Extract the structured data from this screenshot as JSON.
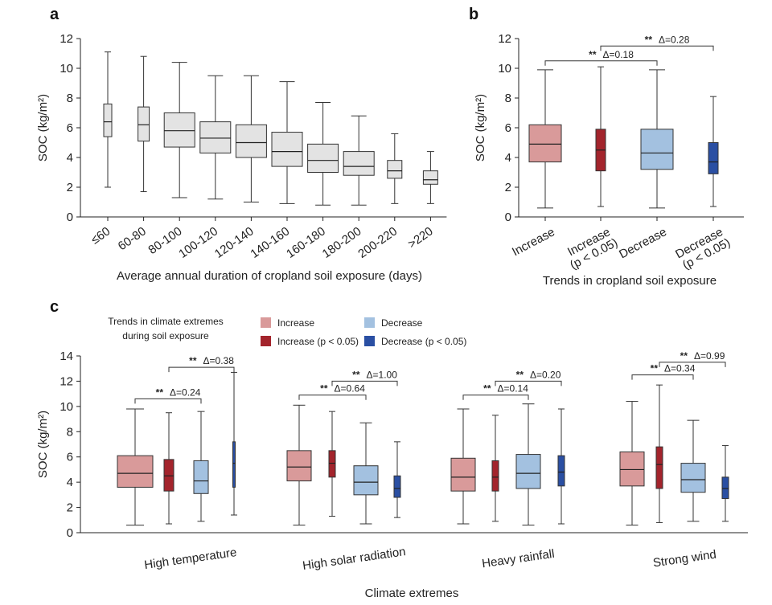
{
  "chart_data": [
    {
      "panel": "a",
      "type": "boxplot",
      "xlabel": "Average annual duration of cropland soil exposure (days)",
      "ylabel": "SOC (kg/m²)",
      "ylim": [
        0,
        12
      ],
      "yticks": [
        "0",
        "2",
        "4",
        "6",
        "8",
        "10",
        "12"
      ],
      "fill": "#e3e3e3",
      "categories": [
        "≤60",
        "60-80",
        "80-100",
        "100-120",
        "120-140",
        "140-160",
        "160-180",
        "180-200",
        "200-220",
        ">220"
      ],
      "boxes": [
        {
          "min": 2.0,
          "q1": 5.4,
          "median": 6.4,
          "q3": 7.6,
          "max": 11.1
        },
        {
          "min": 1.7,
          "q1": 5.1,
          "median": 6.2,
          "q3": 7.4,
          "max": 10.8
        },
        {
          "min": 1.3,
          "q1": 4.7,
          "median": 5.8,
          "q3": 7.0,
          "max": 10.4
        },
        {
          "min": 1.2,
          "q1": 4.3,
          "median": 5.3,
          "q3": 6.4,
          "max": 9.5
        },
        {
          "min": 1.0,
          "q1": 4.0,
          "median": 5.0,
          "q3": 6.2,
          "max": 9.5
        },
        {
          "min": 0.9,
          "q1": 3.4,
          "median": 4.4,
          "q3": 5.7,
          "max": 9.1
        },
        {
          "min": 0.8,
          "q1": 3.0,
          "median": 3.8,
          "q3": 4.9,
          "max": 7.7
        },
        {
          "min": 0.8,
          "q1": 2.8,
          "median": 3.4,
          "q3": 4.4,
          "max": 6.8
        },
        {
          "min": 0.9,
          "q1": 2.6,
          "median": 3.1,
          "q3": 3.8,
          "max": 5.6
        },
        {
          "min": 0.9,
          "q1": 2.2,
          "median": 2.5,
          "q3": 3.1,
          "max": 4.4
        }
      ]
    },
    {
      "panel": "b",
      "type": "boxplot",
      "xlabel": "Trends in cropland soil exposure",
      "ylabel": "SOC (kg/m²)",
      "ylim": [
        0,
        12
      ],
      "yticks": [
        "0",
        "2",
        "4",
        "6",
        "8",
        "10",
        "12"
      ],
      "categories": [
        {
          "line1": "Increase",
          "line2": ""
        },
        {
          "line1": "Increase",
          "line2": "(p < 0.05)"
        },
        {
          "line1": "Decrease",
          "line2": ""
        },
        {
          "line1": "Decrease",
          "line2": "(p < 0.05)"
        }
      ],
      "boxes": [
        {
          "min": 0.6,
          "q1": 3.7,
          "median": 4.9,
          "q3": 6.2,
          "max": 9.9,
          "color": "#d99a9a",
          "narrow": false
        },
        {
          "min": 0.7,
          "q1": 3.1,
          "median": 4.5,
          "q3": 5.9,
          "max": 10.1,
          "color": "#a3242c",
          "narrow": true
        },
        {
          "min": 0.6,
          "q1": 3.2,
          "median": 4.3,
          "q3": 5.9,
          "max": 9.9,
          "color": "#a3c1e0",
          "narrow": false
        },
        {
          "min": 0.7,
          "q1": 2.9,
          "median": 3.7,
          "q3": 5.0,
          "max": 8.1,
          "color": "#2a4fa3",
          "narrow": true
        }
      ],
      "significance": [
        {
          "from": 0,
          "to": 2,
          "stars": "**",
          "delta": "Δ=0.18",
          "y": 10.5
        },
        {
          "from": 1,
          "to": 3,
          "stars": "**",
          "delta": "Δ=0.28",
          "y": 11.5
        }
      ]
    },
    {
      "panel": "c",
      "type": "boxplot",
      "title": "Trends in climate extremes during soil exposure",
      "title_line1": "Trends in climate extremes",
      "title_line2": "during soil exposure",
      "xlabel": "Climate extremes",
      "ylabel": "SOC (kg/m²)",
      "ylim": [
        0,
        14
      ],
      "yticks": [
        "0",
        "2",
        "4",
        "6",
        "8",
        "10",
        "12",
        "14"
      ],
      "legend": [
        {
          "label": "Increase",
          "color": "#d99a9a"
        },
        {
          "label": "Decrease",
          "color": "#a3c1e0"
        },
        {
          "label": "Increase (p < 0.05)",
          "color": "#a3242c"
        },
        {
          "label": "Decrease (p < 0.05)",
          "color": "#2a4fa3"
        }
      ],
      "groups": [
        {
          "name": "High temperature",
          "boxes": [
            {
              "min": 0.6,
              "q1": 3.6,
              "median": 4.7,
              "q3": 6.1,
              "max": 9.8
            },
            {
              "min": 0.7,
              "q1": 3.3,
              "median": 4.5,
              "q3": 5.8,
              "max": 9.5
            },
            {
              "min": 0.9,
              "q1": 3.1,
              "median": 4.1,
              "q3": 5.7,
              "max": 9.6
            },
            {
              "min": 1.4,
              "q1": 3.6,
              "median": 5.5,
              "q3": 7.2,
              "max": 12.7
            }
          ],
          "significance": [
            {
              "from": 0,
              "to": 2,
              "stars": "**",
              "delta": "Δ=0.24",
              "y": 10.6
            },
            {
              "from": 1,
              "to": 3,
              "stars": "**",
              "delta": "Δ=0.38",
              "y": 13.1
            }
          ]
        },
        {
          "name": "High solar radiation",
          "boxes": [
            {
              "min": 0.6,
              "q1": 4.1,
              "median": 5.2,
              "q3": 6.5,
              "max": 10.1
            },
            {
              "min": 1.3,
              "q1": 4.4,
              "median": 5.5,
              "q3": 6.5,
              "max": 9.6
            },
            {
              "min": 0.7,
              "q1": 3.0,
              "median": 4.0,
              "q3": 5.3,
              "max": 8.7
            },
            {
              "min": 1.2,
              "q1": 2.8,
              "median": 3.5,
              "q3": 4.5,
              "max": 7.2
            }
          ],
          "significance": [
            {
              "from": 0,
              "to": 2,
              "stars": "**",
              "delta": "Δ=0.64",
              "y": 10.9
            },
            {
              "from": 1,
              "to": 3,
              "stars": "**",
              "delta": "Δ=1.00",
              "y": 12.0
            }
          ]
        },
        {
          "name": "Heavy rainfall",
          "boxes": [
            {
              "min": 0.7,
              "q1": 3.3,
              "median": 4.4,
              "q3": 5.9,
              "max": 9.8
            },
            {
              "min": 0.9,
              "q1": 3.3,
              "median": 4.4,
              "q3": 5.7,
              "max": 9.3
            },
            {
              "min": 0.6,
              "q1": 3.5,
              "median": 4.7,
              "q3": 6.2,
              "max": 10.2
            },
            {
              "min": 0.7,
              "q1": 3.7,
              "median": 4.8,
              "q3": 6.1,
              "max": 9.8
            }
          ],
          "significance": [
            {
              "from": 0,
              "to": 2,
              "stars": "**",
              "delta": "Δ=0.14",
              "y": 10.9
            },
            {
              "from": 1,
              "to": 3,
              "stars": "**",
              "delta": "Δ=0.20",
              "y": 12.0
            }
          ]
        },
        {
          "name": "Strong wind",
          "boxes": [
            {
              "min": 0.6,
              "q1": 3.7,
              "median": 5.0,
              "q3": 6.4,
              "max": 10.4
            },
            {
              "min": 0.8,
              "q1": 3.5,
              "median": 5.4,
              "q3": 6.8,
              "max": 11.7
            },
            {
              "min": 0.9,
              "q1": 3.2,
              "median": 4.2,
              "q3": 5.5,
              "max": 8.9
            },
            {
              "min": 0.9,
              "q1": 2.7,
              "median": 3.5,
              "q3": 4.4,
              "max": 6.9
            }
          ],
          "significance": [
            {
              "from": 0,
              "to": 2,
              "stars": "**",
              "delta": "Δ=0.34",
              "y": 12.5
            },
            {
              "from": 1,
              "to": 3,
              "stars": "**",
              "delta": "Δ=0.99",
              "y": 13.5
            }
          ]
        }
      ]
    }
  ]
}
